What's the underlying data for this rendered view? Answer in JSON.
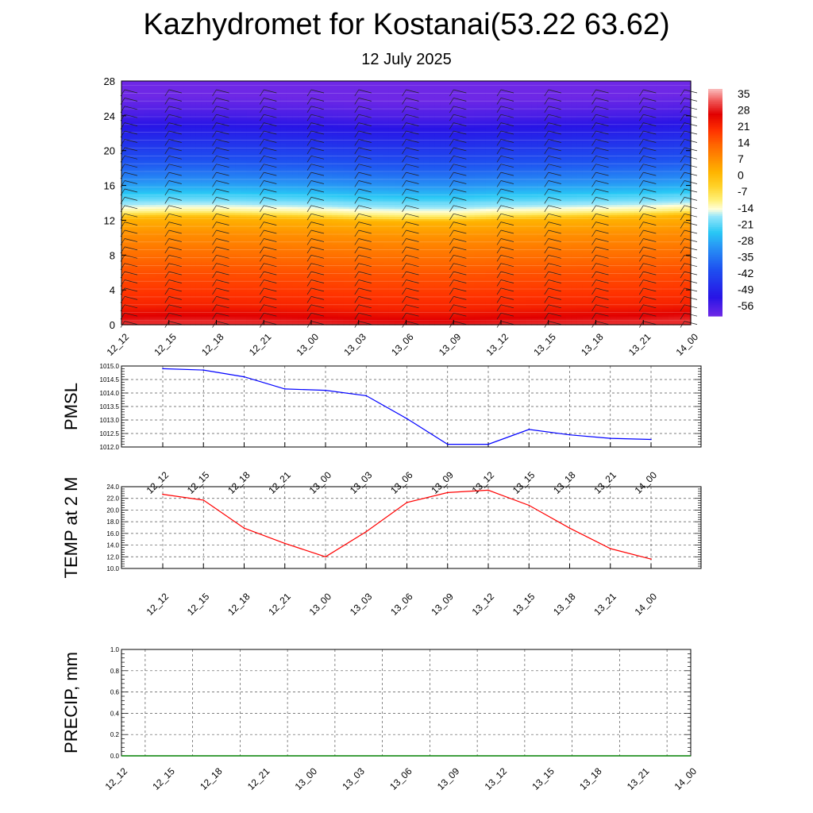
{
  "header": {
    "title": "Kazhydromet for Kostanai(53.22 63.62)",
    "subtitle": "12 July 2025"
  },
  "time_labels": [
    "12_12",
    "12_15",
    "12_18",
    "12_21",
    "13_00",
    "13_03",
    "13_06",
    "13_09",
    "13_12",
    "13_15",
    "13_18",
    "13_21",
    "14_00"
  ],
  "chart_data": [
    {
      "type": "heatmap",
      "title": "",
      "xlabel": "",
      "ylabel": "",
      "x": [
        "12_12",
        "12_15",
        "12_18",
        "12_21",
        "13_00",
        "13_03",
        "13_06",
        "13_09",
        "13_12",
        "13_15",
        "13_18",
        "13_21",
        "14_00"
      ],
      "ylim": [
        0,
        28
      ],
      "yticks": [
        0,
        4,
        8,
        12,
        16,
        20,
        24,
        28
      ],
      "colorbar": {
        "labels": [
          "35",
          "28",
          "21",
          "14",
          "7",
          "0",
          "-7",
          "-14",
          "-21",
          "-28",
          "-35",
          "-42",
          "-49",
          "-56"
        ],
        "range": [
          -60,
          38
        ]
      },
      "profile": {
        "levels": [
          0,
          2,
          4,
          6,
          8,
          10,
          11,
          12,
          12.7,
          13.5,
          15,
          16.5,
          18,
          20,
          22,
          24,
          26,
          28
        ],
        "temperature": [
          30,
          22,
          19,
          16,
          12,
          8,
          5,
          2,
          -10,
          -16,
          -25,
          -32,
          -38,
          -44,
          -50,
          -56,
          -60,
          -60
        ]
      },
      "freezing_level_by_time": [
        12.9,
        13.0,
        13.0,
        12.9,
        12.8,
        12.6,
        12.5,
        12.5,
        12.7,
        12.8,
        12.9,
        13.0,
        13.2
      ],
      "wind_barbs": "shown on all levels"
    },
    {
      "type": "line",
      "title": "",
      "ylabel": "PMSL",
      "categories": [
        "12_12",
        "12_15",
        "12_18",
        "12_21",
        "13_00",
        "13_03",
        "13_06",
        "13_09",
        "13_12",
        "13_15",
        "13_18",
        "13_21",
        "14_00"
      ],
      "series": [
        {
          "name": "",
          "color": "#0000ff",
          "values": [
            1014.9,
            1014.85,
            1014.6,
            1014.15,
            1014.1,
            1013.9,
            1013.05,
            1012.1,
            1012.1,
            1012.65,
            1012.45,
            1012.32,
            1012.28
          ]
        }
      ],
      "ylim": [
        1012.0,
        1015.0
      ],
      "yticks": [
        "1012.0",
        "1012.5",
        "1013.0",
        "1013.5",
        "1014.0",
        "1014.5",
        "1015.0"
      ],
      "grid": true
    },
    {
      "type": "line",
      "title": "",
      "ylabel": "TEMP at 2 M",
      "categories": [
        "12_12",
        "12_15",
        "12_18",
        "12_21",
        "13_00",
        "13_03",
        "13_06",
        "13_09",
        "13_12",
        "13_15",
        "13_18",
        "13_21",
        "14_00"
      ],
      "series": [
        {
          "name": "",
          "color": "#ff0000",
          "values": [
            22.7,
            21.7,
            16.9,
            14.3,
            12.0,
            16.3,
            21.3,
            23.0,
            23.4,
            20.8,
            16.9,
            13.4,
            11.6
          ]
        }
      ],
      "ylim": [
        10.0,
        24.0
      ],
      "yticks": [
        "10.0",
        "12.0",
        "14.0",
        "16.0",
        "18.0",
        "20.0",
        "22.0",
        "24.0"
      ],
      "grid": true
    },
    {
      "type": "line",
      "title": "",
      "ylabel": "PRECIP, mm",
      "categories": [
        "12_12",
        "12_15",
        "12_18",
        "12_21",
        "13_00",
        "13_03",
        "13_06",
        "13_09",
        "13_12",
        "13_15",
        "13_18",
        "13_21",
        "14_00"
      ],
      "series": [
        {
          "name": "",
          "color": "#008000",
          "values": [
            0,
            0,
            0,
            0,
            0,
            0,
            0,
            0,
            0,
            0,
            0,
            0,
            0
          ]
        }
      ],
      "ylim": [
        0.0,
        1.0
      ],
      "yticks": [
        "0.0",
        "0.2",
        "0.4",
        "0.6",
        "0.8",
        "1.0"
      ],
      "grid": true
    }
  ]
}
